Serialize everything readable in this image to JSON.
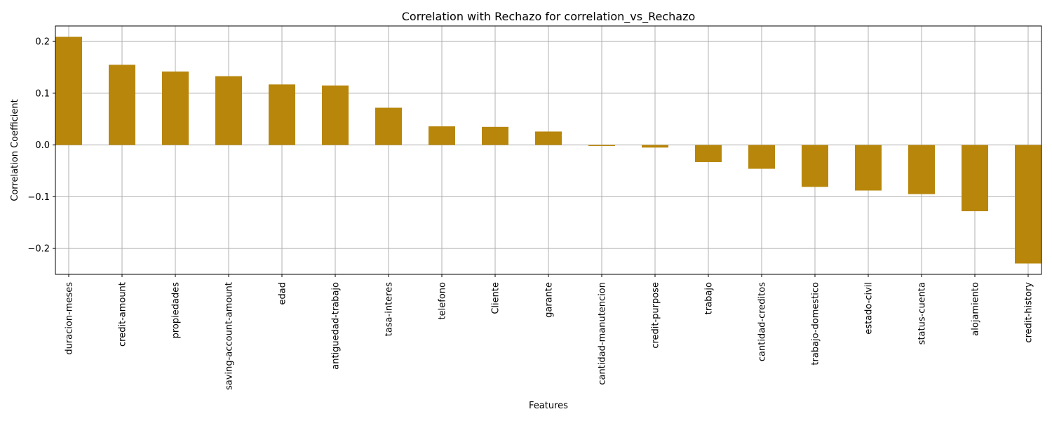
{
  "chart_data": {
    "type": "bar",
    "title": "Correlation with Rechazo for correlation_vs_Rechazo",
    "xlabel": "Features",
    "ylabel": "Correlation Coefficient",
    "categories": [
      "duracion-meses",
      "credit-amount",
      "propiedades",
      "saving-account-amount",
      "edad",
      "antiguedad-trabajo",
      "tasa-interes",
      "telefono",
      "Cliente",
      "garante",
      "cantidad-manutencion",
      "credit-purpose",
      "trabajo",
      "cantidad-creditos",
      "trabajo-domestico",
      "estado-civil",
      "status-cuenta",
      "alojamiento",
      "credit-history"
    ],
    "values": [
      0.209,
      0.155,
      0.142,
      0.133,
      0.117,
      0.115,
      0.072,
      0.036,
      0.035,
      0.026,
      -0.002,
      -0.005,
      -0.033,
      -0.046,
      -0.081,
      -0.088,
      -0.095,
      -0.128,
      -0.229
    ],
    "ylim": [
      -0.25,
      0.23
    ],
    "yticks": [
      -0.2,
      -0.1,
      0.0,
      0.1,
      0.2
    ],
    "ytick_labels": [
      "−0.2",
      "−0.1",
      "0.0",
      "0.1",
      "0.2"
    ],
    "grid": true,
    "bar_color": "#b8860b"
  }
}
